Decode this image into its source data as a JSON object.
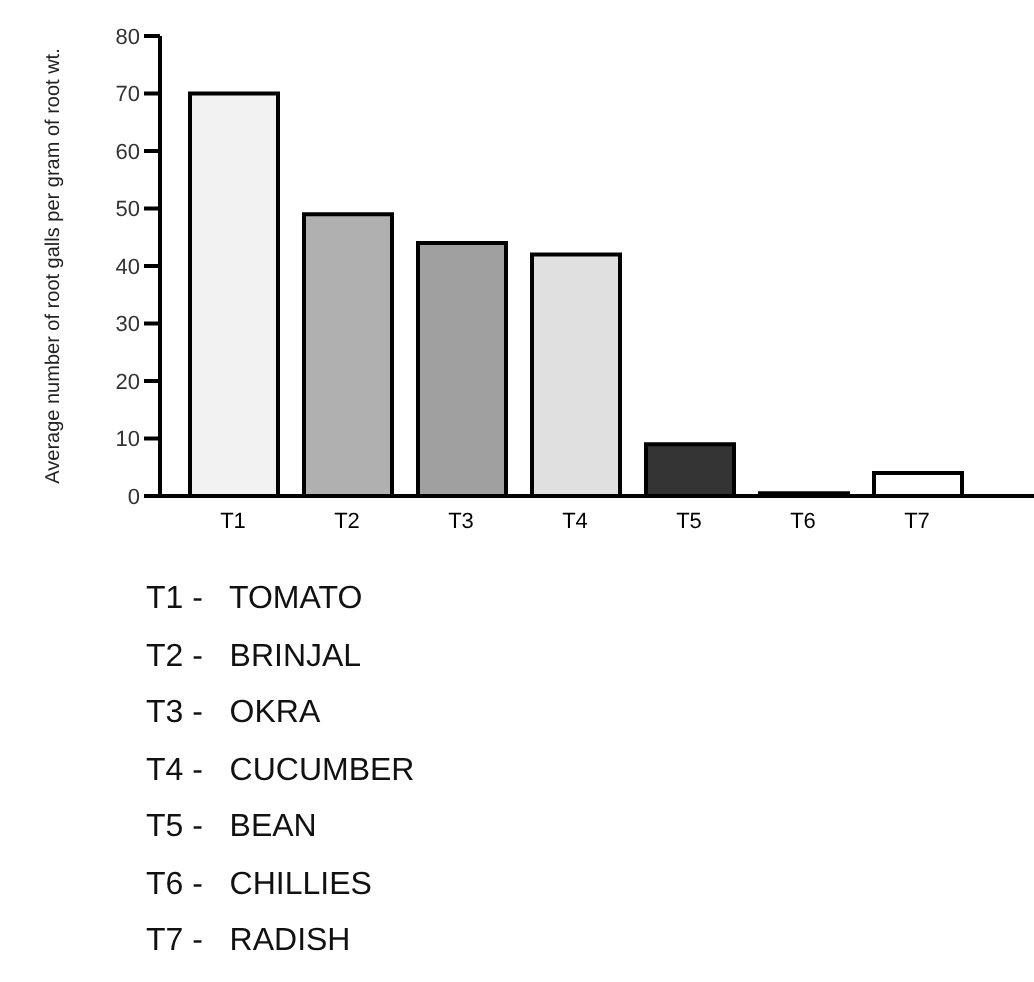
{
  "chart_data": {
    "type": "bar",
    "ylabel": "Average number of root galls per gram of root wt.",
    "categories": [
      "T1",
      "T2",
      "T3",
      "T4",
      "T5",
      "T6",
      "T7"
    ],
    "values": [
      70,
      49,
      44,
      42,
      9,
      0.5,
      4
    ],
    "colors": [
      "#f2f2f2",
      "#b0b0b0",
      "#a0a0a0",
      "#e0e0e0",
      "#333333",
      "#222222",
      "#ffffff"
    ],
    "ylim": [
      0,
      80
    ],
    "yticks": [
      0,
      10,
      20,
      30,
      40,
      50,
      60,
      70,
      80
    ],
    "grid": false,
    "legend": false,
    "annotations": [
      "T1 -   TOMATO",
      "T2 -   BRINJAL",
      "T3 -   OKRA",
      "T4 -   CUCUMBER",
      "T5 -   BEAN",
      "T6 -   CHILLIES",
      "T7 -   RADISH"
    ]
  }
}
